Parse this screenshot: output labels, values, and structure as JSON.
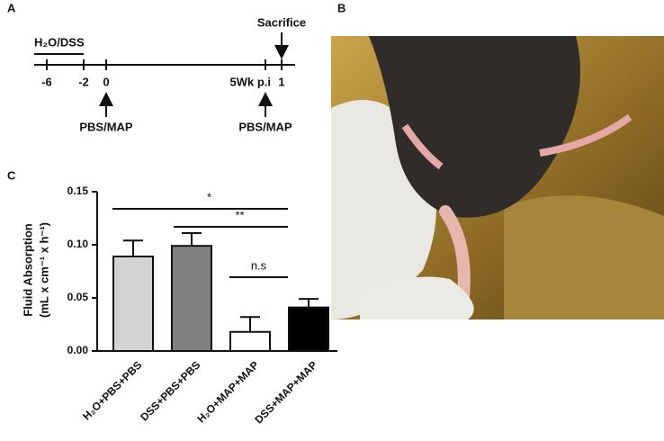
{
  "panel_a": {
    "letter": "A",
    "treatment": "H₂O/DSS",
    "sacrifice": "Sacrifice",
    "ticks": [
      "-6",
      "-2",
      "0",
      "5Wk p.i",
      "1"
    ],
    "injections": [
      "PBS/MAP",
      "PBS/MAP"
    ]
  },
  "panel_b": {
    "letter": "B"
  },
  "chart_data": {
    "type": "bar",
    "letter": "C",
    "y_label": "Fluid Absorption",
    "y_unit": "(mL x cm⁻¹ x h⁻¹)",
    "categories": [
      "H₂O+PBS+PBS",
      "DSS+PBS+PBS",
      "H₂O+MAP+MAP",
      "DSS+MAP+MAP"
    ],
    "values": [
      0.089,
      0.099,
      0.018,
      0.041
    ],
    "errors": [
      0.015,
      0.012,
      0.014,
      0.008
    ],
    "colors": [
      "#d3d3d3",
      "#808080",
      "#ffffff",
      "#000000"
    ],
    "ylim": [
      0,
      0.15
    ],
    "yticks": [
      {
        "value": 0,
        "label": "0.00"
      },
      {
        "value": 0.05,
        "label": "0.05"
      },
      {
        "value": 0.1,
        "label": "0.10"
      },
      {
        "value": 0.15,
        "label": "0.15"
      }
    ],
    "annotations": [
      "*",
      "**",
      "n.s"
    ]
  }
}
